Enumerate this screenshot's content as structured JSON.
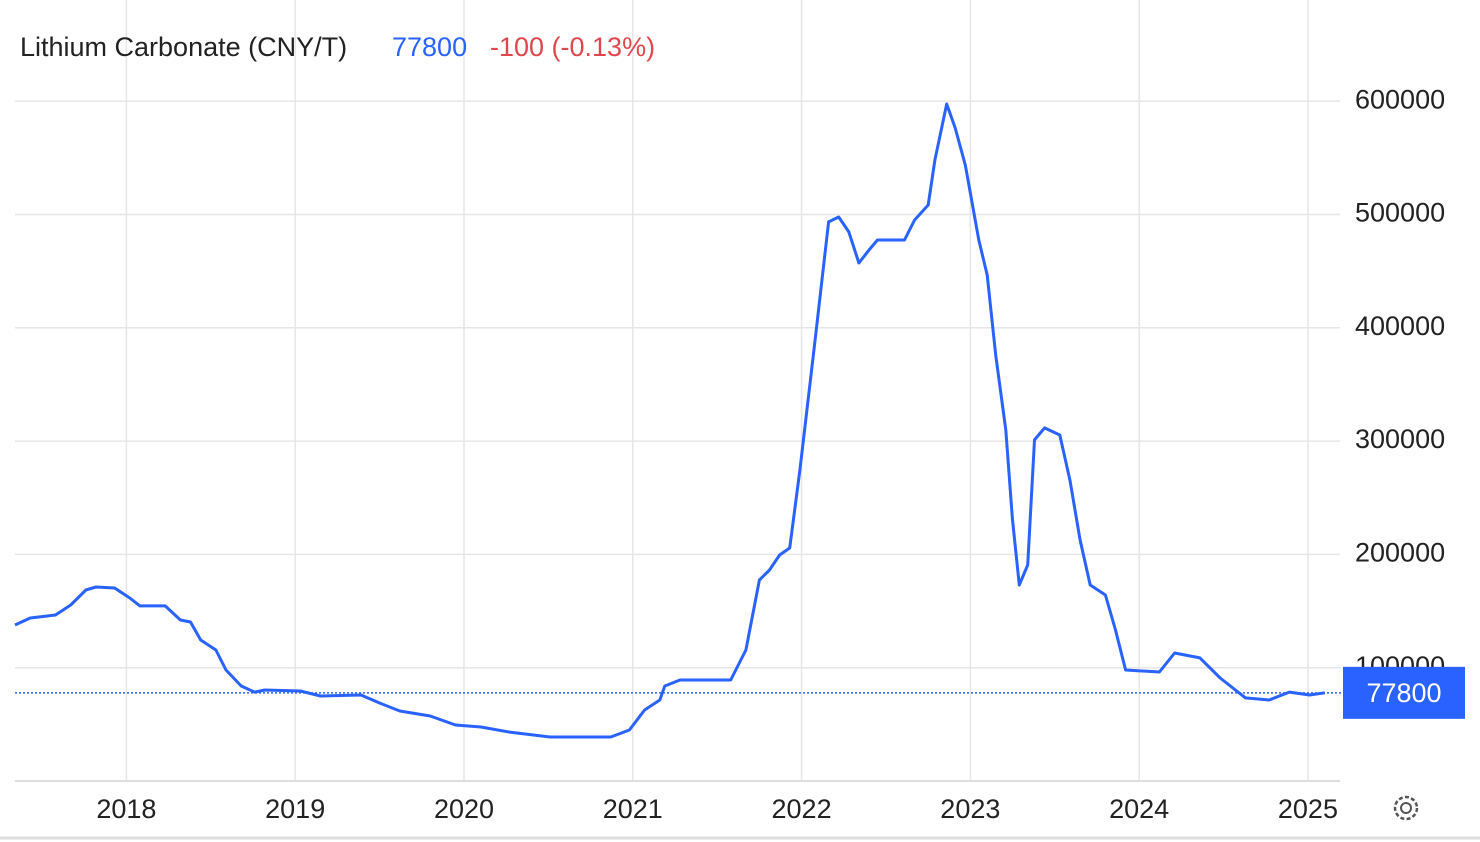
{
  "chart_data": {
    "type": "line",
    "title": "Lithium Carbonate (CNY/T)",
    "last_value": 77800,
    "change_label": "-100 (-0.13%)",
    "x": [
      2017.34,
      2017.43,
      2017.58,
      2017.67,
      2017.76,
      2017.82,
      2017.93,
      2018.02,
      2018.08,
      2018.23,
      2018.32,
      2018.38,
      2018.44,
      2018.53,
      2018.59,
      2018.68,
      2018.76,
      2018.82,
      2019.03,
      2019.15,
      2019.39,
      2019.5,
      2019.62,
      2019.8,
      2019.95,
      2020.1,
      2020.27,
      2020.51,
      2020.87,
      2020.98,
      2021.07,
      2021.16,
      2021.19,
      2021.28,
      2021.58,
      2021.67,
      2021.75,
      2021.81,
      2021.87,
      2021.93,
      2021.99,
      2022.08,
      2022.16,
      2022.22,
      2022.28,
      2022.34,
      2022.4,
      2022.45,
      2022.61,
      2022.67,
      2022.75,
      2022.79,
      2022.86,
      2022.91,
      2022.97,
      2023.05,
      2023.1,
      2023.15,
      2023.21,
      2023.25,
      2023.29,
      2023.34,
      2023.38,
      2023.44,
      2023.53,
      2023.59,
      2023.65,
      2023.71,
      2023.8,
      2023.86,
      2023.92,
      2024.12,
      2024.21,
      2024.36,
      2024.48,
      2024.63,
      2024.77,
      2024.89,
      2025.01,
      2025.1
    ],
    "series": [
      {
        "name": "Lithium Carbonate",
        "color": "#2962ff",
        "values": [
          137700,
          143900,
          146500,
          155300,
          168600,
          171200,
          170300,
          161500,
          154500,
          154500,
          142100,
          140300,
          124400,
          115600,
          98000,
          83800,
          78500,
          80300,
          79400,
          75000,
          75900,
          68800,
          61800,
          57400,
          49400,
          47700,
          43200,
          38800,
          38800,
          45000,
          62700,
          71500,
          83800,
          89100,
          89100,
          115600,
          177400,
          186200,
          199500,
          205600,
          274500,
          389200,
          493400,
          497800,
          484600,
          457200,
          468700,
          477500,
          477500,
          495100,
          508400,
          548100,
          597500,
          576300,
          543700,
          477500,
          446600,
          376000,
          309800,
          230400,
          173000,
          190600,
          301000,
          311600,
          305400,
          265700,
          212700,
          173000,
          164200,
          133300,
          98000,
          96200,
          113000,
          108600,
          90900,
          73300,
          71500,
          78500,
          75900,
          77800
        ]
      }
    ],
    "xlim": [
      2017.34,
      2025.19
    ],
    "xticks": [
      2018,
      2019,
      2020,
      2021,
      2022,
      2023,
      2024,
      2025
    ],
    "ylim": [
      0,
      620000
    ],
    "yticks": [
      100000,
      200000,
      300000,
      400000,
      500000,
      600000
    ],
    "grid": true,
    "change_color": "#e0474c"
  }
}
